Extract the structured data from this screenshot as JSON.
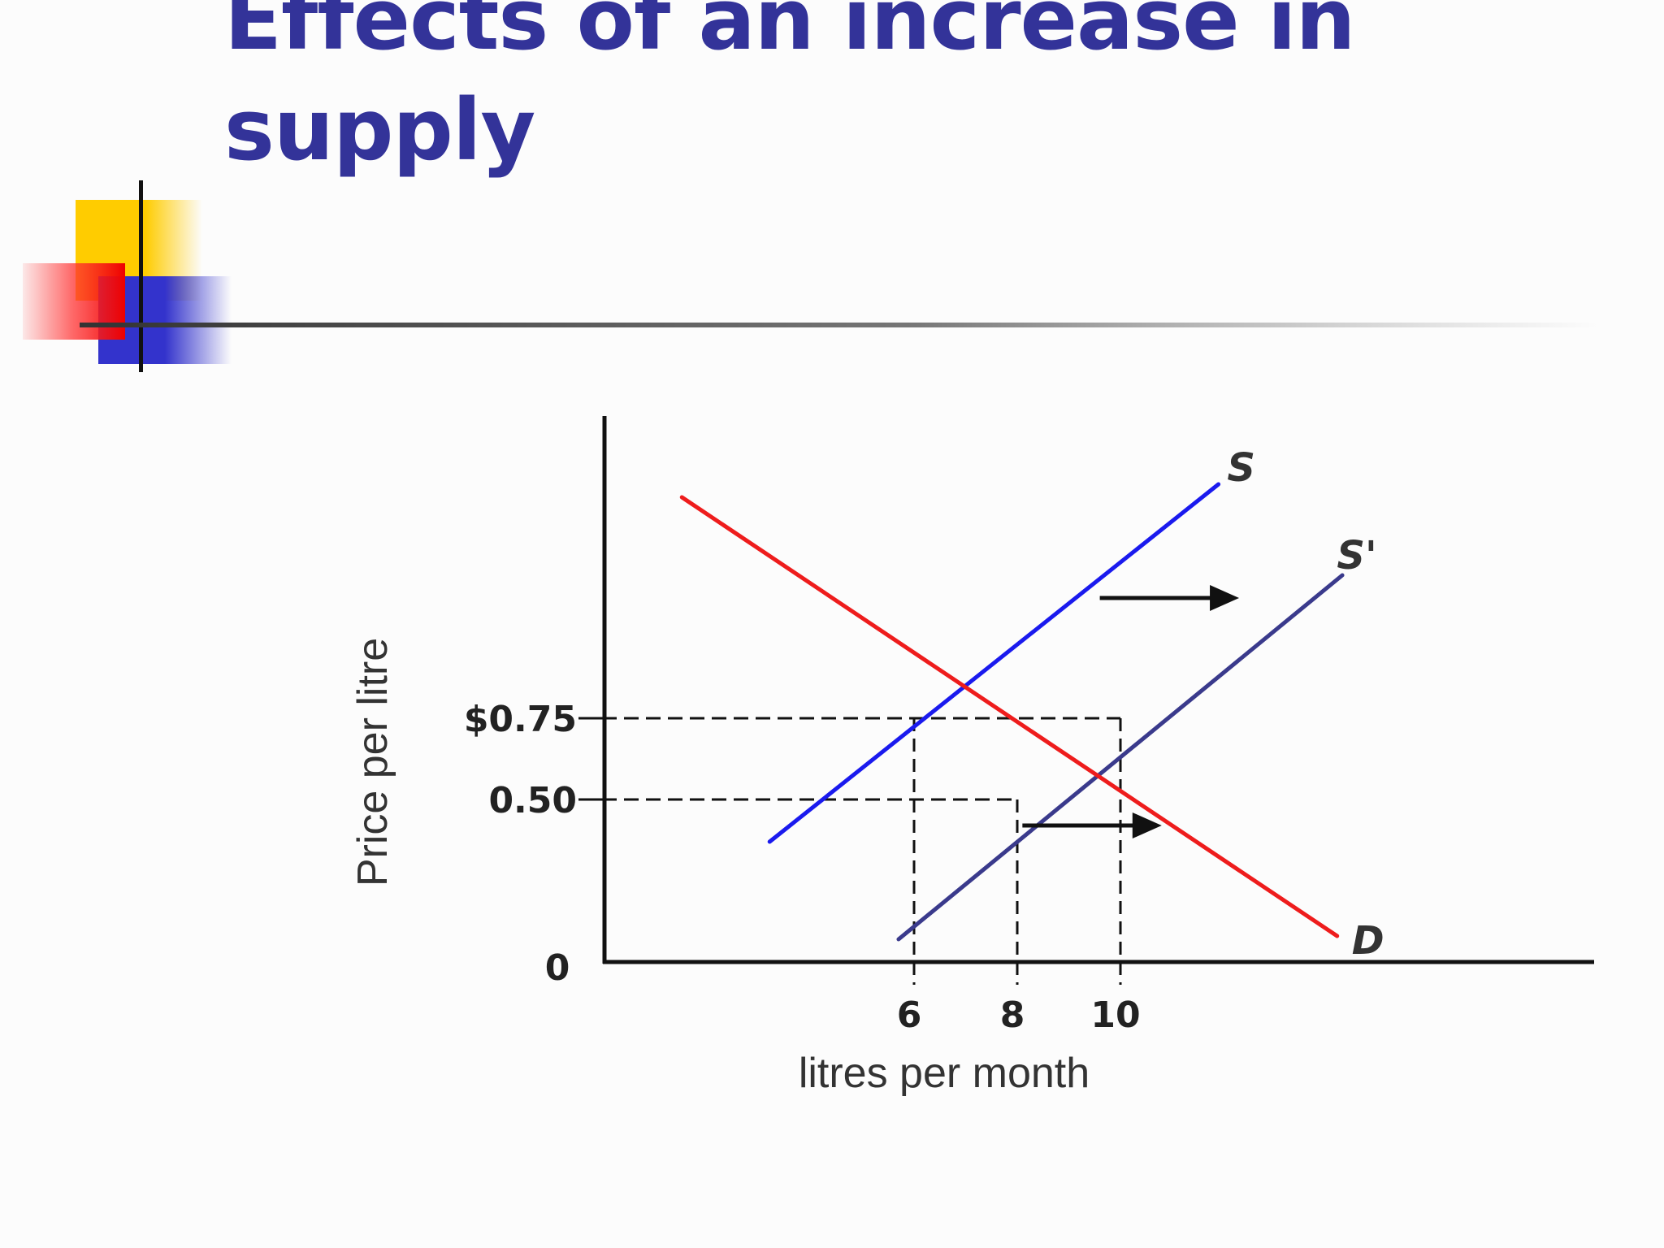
{
  "slide": {
    "title": "Effects of an increase in supply"
  },
  "colors": {
    "title": "#333399",
    "supply_s": "#1a1aee",
    "supply_s_prime": "#3a3a8c",
    "demand": "#ee1c1c",
    "accent_yellow": "#ffcc00",
    "accent_red": "#ff3333",
    "accent_blue": "#3333cc"
  },
  "chart_data": {
    "type": "line",
    "title": "",
    "xlabel": "litres per month",
    "ylabel": "Price per litre",
    "origin_label": "0",
    "x_ticks": [
      {
        "value": 6,
        "label": "6"
      },
      {
        "value": 8,
        "label": "8"
      },
      {
        "value": 10,
        "label": "10"
      }
    ],
    "y_ticks": [
      {
        "value": 0.75,
        "label": "$0.75"
      },
      {
        "value": 0.5,
        "label": "0.50"
      }
    ],
    "series": [
      {
        "name": "S",
        "color": "#1a1aee",
        "points": [
          [
            3.2,
            0.37
          ],
          [
            11.9,
            1.47
          ]
        ]
      },
      {
        "name": "S'",
        "color": "#3a3a8c",
        "points": [
          [
            5.7,
            0.07
          ],
          [
            14.3,
            1.19
          ]
        ]
      },
      {
        "name": "D",
        "color": "#ee1c1c",
        "points": [
          [
            1.5,
            1.43
          ],
          [
            14.2,
            0.08
          ]
        ]
      }
    ],
    "equilibria": [
      {
        "x": 6,
        "y": 0.75
      },
      {
        "x": 8,
        "y": 0.5
      },
      {
        "x": 10,
        "y": 0.75
      }
    ],
    "shift_arrows": [
      {
        "from": [
          9.6,
          1.12
        ],
        "to": [
          12.3,
          1.12
        ]
      },
      {
        "from": [
          8.1,
          0.42
        ],
        "to": [
          10.8,
          0.42
        ]
      }
    ],
    "grid": false,
    "legend": "none"
  }
}
